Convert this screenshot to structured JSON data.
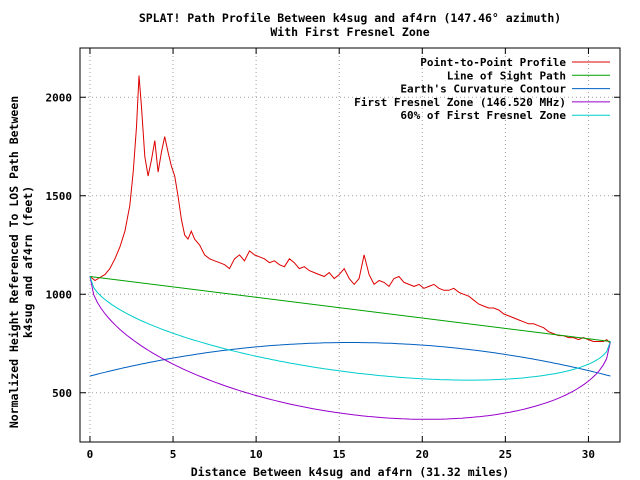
{
  "chart_data": {
    "type": "line",
    "title": "SPLAT! Path Profile Between k4sug and af4rn (147.46° azimuth)",
    "subtitle": "With First Fresnel Zone",
    "xlabel": "Distance Between k4sug and af4rn (31.32 miles)",
    "ylabel_line1": "Normalized Height Referenced To LOS Path Between",
    "ylabel_line2": "k4sug and af4rn (feet)",
    "xlim": [
      -0.6,
      31.9
    ],
    "ylim": [
      250,
      2250
    ],
    "xticks": [
      0,
      5,
      10,
      15,
      20,
      25,
      30
    ],
    "yticks": [
      500,
      1000,
      1500,
      2000
    ],
    "grid": true,
    "legend_position": "top-right",
    "series": [
      {
        "name": "Point-to-Point Profile",
        "color": "#dd0000",
        "x": [
          0,
          0.3,
          0.6,
          0.9,
          1.2,
          1.5,
          1.8,
          2.1,
          2.4,
          2.6,
          2.8,
          2.95,
          3.1,
          3.3,
          3.5,
          3.7,
          3.9,
          4.1,
          4.3,
          4.5,
          4.7,
          4.9,
          5.1,
          5.3,
          5.5,
          5.7,
          5.9,
          6.1,
          6.3,
          6.6,
          6.9,
          7.2,
          7.5,
          7.8,
          8.1,
          8.4,
          8.7,
          9.0,
          9.3,
          9.6,
          9.9,
          10.2,
          10.5,
          10.8,
          11.1,
          11.4,
          11.7,
          12.0,
          12.3,
          12.6,
          12.9,
          13.2,
          13.5,
          13.8,
          14.1,
          14.4,
          14.7,
          15.0,
          15.3,
          15.6,
          15.9,
          16.2,
          16.5,
          16.8,
          17.1,
          17.4,
          17.7,
          18.0,
          18.3,
          18.6,
          18.9,
          19.2,
          19.5,
          19.8,
          20.1,
          20.4,
          20.7,
          21.0,
          21.3,
          21.6,
          21.9,
          22.2,
          22.5,
          22.8,
          23.1,
          23.4,
          23.7,
          24.0,
          24.3,
          24.6,
          24.9,
          25.2,
          25.5,
          25.8,
          26.1,
          26.4,
          26.7,
          27.0,
          27.3,
          27.6,
          27.9,
          28.2,
          28.5,
          28.8,
          29.1,
          29.4,
          29.7,
          30.0,
          30.3,
          30.6,
          30.9,
          31.1,
          31.32
        ],
        "y": [
          1090,
          1070,
          1085,
          1100,
          1130,
          1180,
          1240,
          1320,
          1450,
          1620,
          1850,
          2110,
          1950,
          1700,
          1600,
          1680,
          1780,
          1620,
          1720,
          1800,
          1720,
          1650,
          1600,
          1500,
          1380,
          1300,
          1280,
          1320,
          1280,
          1250,
          1200,
          1180,
          1170,
          1160,
          1150,
          1130,
          1180,
          1200,
          1170,
          1220,
          1200,
          1190,
          1180,
          1160,
          1170,
          1150,
          1140,
          1180,
          1160,
          1130,
          1140,
          1120,
          1110,
          1100,
          1090,
          1110,
          1080,
          1100,
          1130,
          1080,
          1050,
          1080,
          1200,
          1100,
          1050,
          1070,
          1060,
          1040,
          1080,
          1090,
          1060,
          1050,
          1040,
          1050,
          1030,
          1040,
          1050,
          1030,
          1020,
          1020,
          1030,
          1010,
          1000,
          990,
          970,
          950,
          940,
          930,
          930,
          920,
          900,
          890,
          880,
          870,
          860,
          850,
          850,
          840,
          830,
          810,
          800,
          790,
          790,
          780,
          780,
          770,
          780,
          770,
          760,
          760,
          760,
          770,
          750
        ]
      },
      {
        "name": "Line of Sight Path",
        "color": "#00a000",
        "x": [
          0,
          31.32
        ],
        "y": [
          1090,
          760
        ]
      },
      {
        "name": "Earth's Curvature Contour",
        "color": "#0060c0",
        "x": [
          0,
          31.32
        ],
        "y": [
          585,
          585
        ],
        "bulge": 170
      },
      {
        "name": "First Fresnel Zone (146.520 MHz)",
        "color": "#9900cc",
        "x": [
          0,
          31.32
        ],
        "y": [
          1090,
          760
        ],
        "radius": 535
      },
      {
        "name": "60% of First Fresnel Zone",
        "color": "#00cccc",
        "x": [
          0,
          31.32
        ],
        "y": [
          1090,
          760
        ],
        "radius": 321
      }
    ]
  }
}
